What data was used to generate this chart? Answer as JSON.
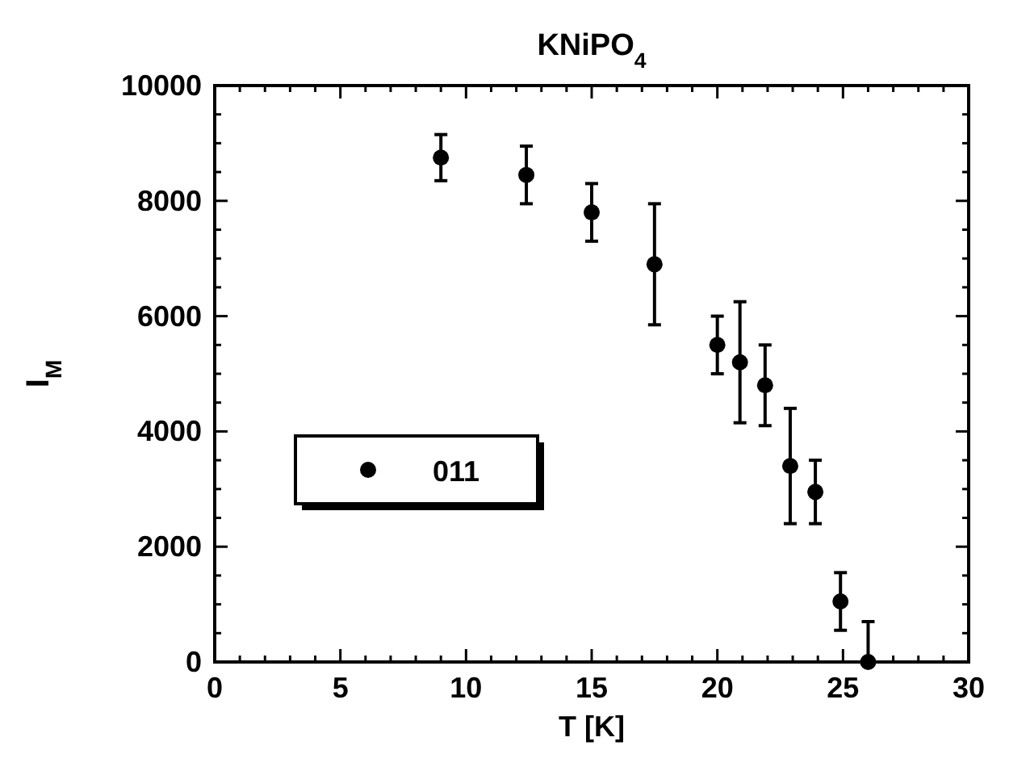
{
  "chart_data": {
    "type": "scatter",
    "title": "KNiPO$_{4}$",
    "xlabel": "T [K]",
    "ylabel": "I$_{M}$",
    "x": [
      9,
      12.4,
      15,
      17.5,
      20,
      20.9,
      21.9,
      22.9,
      23.9,
      24.9,
      26
    ],
    "series": [
      {
        "name": "011",
        "color": "#000000",
        "values": [
          8750,
          8450,
          7800,
          6900,
          5500,
          5200,
          4800,
          3400,
          2950,
          1050,
          0
        ],
        "errors": [
          400,
          500,
          500,
          1050,
          500,
          1050,
          700,
          1000,
          550,
          500,
          [
            0,
            700
          ]
        ]
      }
    ],
    "xlim": [
      0,
      30
    ],
    "ylim": [
      0,
      10000
    ],
    "xticks": [
      0,
      {
        "value": 1,
        "label": null
      },
      {
        "value": 2,
        "label": null
      },
      {
        "value": 3,
        "label": null
      },
      {
        "value": 4,
        "label": null
      },
      5,
      {
        "value": 6,
        "label": null
      },
      {
        "value": 7,
        "label": null
      },
      {
        "value": 8,
        "label": null
      },
      {
        "value": 9,
        "label": null
      },
      10,
      {
        "value": 11,
        "label": null
      },
      {
        "value": 12,
        "label": null
      },
      {
        "value": 13,
        "label": null
      },
      {
        "value": 14,
        "label": null
      },
      15,
      {
        "value": 16,
        "label": null
      },
      {
        "value": 17,
        "label": null
      },
      {
        "value": 18,
        "label": null
      },
      {
        "value": 19,
        "label": null
      },
      20,
      {
        "value": 21,
        "label": null
      },
      {
        "value": 22,
        "label": null
      },
      {
        "value": 23,
        "label": null
      },
      {
        "value": 24,
        "label": null
      },
      25,
      {
        "value": 26,
        "label": null
      },
      {
        "value": 27,
        "label": null
      },
      {
        "value": 28,
        "label": null
      },
      {
        "value": 29,
        "label": null
      },
      30
    ],
    "yticks": [
      0,
      {
        "value": 500,
        "label": null
      },
      2000,
      {
        "value": 1000,
        "label": null
      },
      {
        "value": 1500,
        "label": null
      },
      {
        "value": 2500,
        "label": null
      },
      {
        "value": 3000,
        "label": null
      },
      {
        "value": 3500,
        "label": null
      },
      4000,
      {
        "value": 4500,
        "label": null
      },
      {
        "value": 5000,
        "label": null
      },
      {
        "value": 5500,
        "label": null
      },
      6000,
      {
        "value": 6500,
        "label": null
      },
      {
        "value": 7000,
        "label": null
      },
      {
        "value": 7500,
        "label": null
      },
      8000,
      {
        "value": 8500,
        "label": null
      },
      {
        "value": 9000,
        "label": null
      },
      {
        "value": 9500,
        "label": null
      },
      10000
    ],
    "marker": "circle",
    "grid": false,
    "legend": "left"
  }
}
